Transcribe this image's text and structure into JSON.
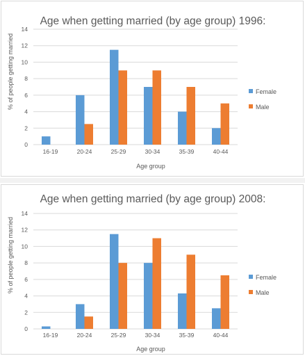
{
  "colors": {
    "female": "#5b9bd5",
    "male": "#ed7d31"
  },
  "chart_data": [
    {
      "type": "bar",
      "title": "Age when getting married (by age group) 1996:",
      "xlabel": "Age group",
      "ylabel": "% of people getting married",
      "ylim": [
        0,
        14
      ],
      "yticks": [
        "0",
        "2",
        "4",
        "6",
        "8",
        "10",
        "12",
        "14"
      ],
      "grid": true,
      "legend": "right",
      "categories": [
        "16-19",
        "20-24",
        "25-29",
        "30-34",
        "35-39",
        "40-44"
      ],
      "series": [
        {
          "name": "Female",
          "values": [
            1,
            6,
            11.5,
            7,
            4,
            2
          ]
        },
        {
          "name": "Male",
          "values": [
            0,
            2.5,
            9,
            9,
            7,
            5
          ]
        }
      ]
    },
    {
      "type": "bar",
      "title": "Age when getting married (by age group) 2008:",
      "xlabel": "Age group",
      "ylabel": "% of people getting married",
      "ylim": [
        0,
        14
      ],
      "yticks": [
        "0",
        "2",
        "4",
        "6",
        "8",
        "10",
        "12",
        "14"
      ],
      "grid": true,
      "legend": "right",
      "categories": [
        "16-19",
        "20-24",
        "25-29",
        "30-34",
        "35-39",
        "40-44"
      ],
      "series": [
        {
          "name": "Female",
          "values": [
            0.3,
            3,
            11.5,
            8,
            4.3,
            2.5
          ]
        },
        {
          "name": "Male",
          "values": [
            0,
            1.5,
            8,
            11,
            9,
            6.5
          ]
        }
      ]
    }
  ]
}
